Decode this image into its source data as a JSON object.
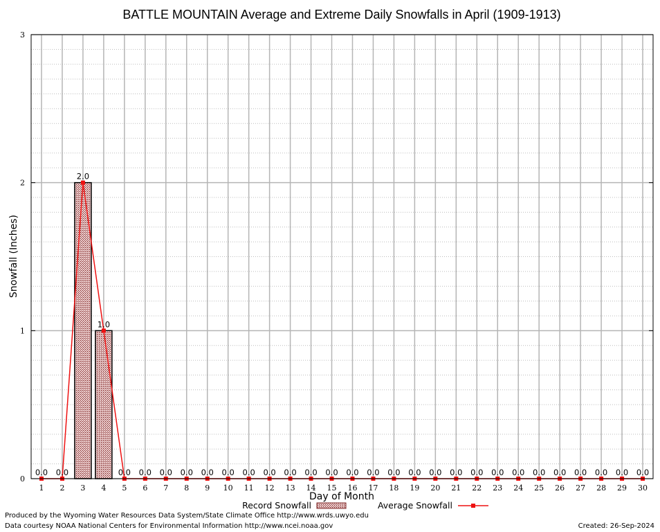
{
  "chart_data": {
    "type": "bar",
    "title": "BATTLE MOUNTAIN Average and Extreme Daily Snowfalls in April (1909-1913)",
    "xlabel": "Day of Month",
    "ylabel": "Snowfall (Inches)",
    "ylim": [
      0,
      3
    ],
    "yticks": [
      "0",
      "1",
      "2",
      "3"
    ],
    "grid": true,
    "legend_position": "bottom",
    "categories": [
      "1",
      "2",
      "3",
      "4",
      "5",
      "6",
      "7",
      "8",
      "9",
      "10",
      "11",
      "12",
      "13",
      "14",
      "15",
      "16",
      "17",
      "18",
      "19",
      "20",
      "21",
      "22",
      "23",
      "24",
      "25",
      "26",
      "27",
      "28",
      "29",
      "30"
    ],
    "series": [
      {
        "name": "Record Snowfall",
        "kind": "bar",
        "color": "#7a1f1f",
        "values": [
          0,
          0,
          2,
          1,
          0,
          0,
          0,
          0,
          0,
          0,
          0,
          0,
          0,
          0,
          0,
          0,
          0,
          0,
          0,
          0,
          0,
          0,
          0,
          0,
          0,
          0,
          0,
          0,
          0,
          0
        ],
        "labels": [
          "0.0",
          "0.0",
          "2.0",
          "1.0",
          "0.0",
          "0.0",
          "0.0",
          "0.0",
          "0.0",
          "0.0",
          "0.0",
          "0.0",
          "0.0",
          "0.0",
          "0.0",
          "0.0",
          "0.0",
          "0.0",
          "0.0",
          "0.0",
          "0.0",
          "0.0",
          "0.0",
          "0.0",
          "0.0",
          "0.0",
          "0.0",
          "0.0",
          "0.0",
          "0.0"
        ]
      },
      {
        "name": "Average Snowfall",
        "kind": "line",
        "color": "#ee1111",
        "values": [
          0,
          0,
          2,
          1,
          0,
          0,
          0,
          0,
          0,
          0,
          0,
          0,
          0,
          0,
          0,
          0,
          0,
          0,
          0,
          0,
          0,
          0,
          0,
          0,
          0,
          0,
          0,
          0,
          0,
          0
        ]
      }
    ]
  },
  "footer": {
    "produced_by": "Produced by the Wyoming Water Resources Data System/State Climate Office http://www.wrds.uwyo.edu",
    "data_courtesy": "Data courtesy NOAA National Centers for Environmental Information http://www.ncei.noaa.gov",
    "created": "Created: 26-Sep-2024"
  }
}
